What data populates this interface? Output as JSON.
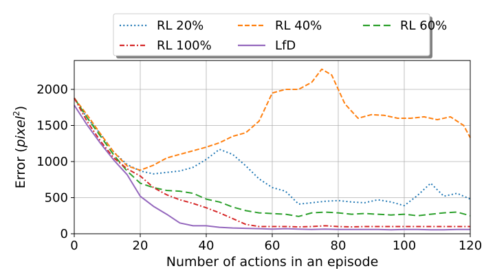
{
  "chart_data": {
    "type": "line",
    "title": "",
    "xlabel": "Number of actions in an episode",
    "ylabel_prefix": "Error (",
    "ylabel_unit": "pixel",
    "ylabel_exponent": "2",
    "ylabel_suffix": ")",
    "xlim": [
      0,
      120
    ],
    "ylim": [
      0,
      2400
    ],
    "xticks": [
      0,
      20,
      40,
      60,
      80,
      100,
      120
    ],
    "yticks": [
      0,
      500,
      1000,
      1500,
      2000
    ],
    "grid": true,
    "legend_position": "top-center",
    "legend_columns": 3,
    "series": [
      {
        "name": "RL 20%",
        "color": "#1f77b4",
        "dash": "dotted",
        "points": [
          [
            0,
            1880
          ],
          [
            4,
            1600
          ],
          [
            8,
            1380
          ],
          [
            12,
            1130
          ],
          [
            16,
            960
          ],
          [
            20,
            870
          ],
          [
            24,
            830
          ],
          [
            28,
            850
          ],
          [
            32,
            870
          ],
          [
            36,
            920
          ],
          [
            40,
            1030
          ],
          [
            44,
            1170
          ],
          [
            48,
            1100
          ],
          [
            52,
            940
          ],
          [
            56,
            760
          ],
          [
            60,
            640
          ],
          [
            64,
            590
          ],
          [
            68,
            410
          ],
          [
            72,
            430
          ],
          [
            76,
            450
          ],
          [
            80,
            460
          ],
          [
            84,
            440
          ],
          [
            88,
            430
          ],
          [
            92,
            470
          ],
          [
            96,
            440
          ],
          [
            100,
            390
          ],
          [
            104,
            530
          ],
          [
            108,
            700
          ],
          [
            112,
            520
          ],
          [
            116,
            560
          ],
          [
            120,
            480
          ]
        ]
      },
      {
        "name": "RL 40%",
        "color": "#ff7f0e",
        "dash": "dashed",
        "points": [
          [
            0,
            1880
          ],
          [
            4,
            1640
          ],
          [
            8,
            1380
          ],
          [
            12,
            1130
          ],
          [
            16,
            940
          ],
          [
            20,
            880
          ],
          [
            24,
            950
          ],
          [
            28,
            1050
          ],
          [
            32,
            1100
          ],
          [
            36,
            1150
          ],
          [
            40,
            1200
          ],
          [
            44,
            1260
          ],
          [
            48,
            1350
          ],
          [
            52,
            1400
          ],
          [
            56,
            1560
          ],
          [
            60,
            1950
          ],
          [
            64,
            2000
          ],
          [
            68,
            2000
          ],
          [
            72,
            2100
          ],
          [
            75,
            2280
          ],
          [
            78,
            2200
          ],
          [
            82,
            1800
          ],
          [
            86,
            1600
          ],
          [
            90,
            1650
          ],
          [
            94,
            1640
          ],
          [
            98,
            1600
          ],
          [
            102,
            1600
          ],
          [
            106,
            1620
          ],
          [
            110,
            1580
          ],
          [
            114,
            1620
          ],
          [
            118,
            1500
          ],
          [
            120,
            1330
          ]
        ]
      },
      {
        "name": "RL 60%",
        "color": "#2ca02c",
        "dash": "longdash",
        "points": [
          [
            0,
            1880
          ],
          [
            4,
            1600
          ],
          [
            8,
            1350
          ],
          [
            12,
            1090
          ],
          [
            16,
            870
          ],
          [
            20,
            700
          ],
          [
            24,
            640
          ],
          [
            28,
            600
          ],
          [
            32,
            590
          ],
          [
            36,
            560
          ],
          [
            40,
            480
          ],
          [
            44,
            440
          ],
          [
            48,
            370
          ],
          [
            52,
            320
          ],
          [
            56,
            290
          ],
          [
            60,
            280
          ],
          [
            64,
            270
          ],
          [
            68,
            240
          ],
          [
            72,
            290
          ],
          [
            76,
            300
          ],
          [
            80,
            290
          ],
          [
            84,
            270
          ],
          [
            88,
            280
          ],
          [
            92,
            270
          ],
          [
            96,
            260
          ],
          [
            100,
            270
          ],
          [
            104,
            250
          ],
          [
            108,
            270
          ],
          [
            112,
            290
          ],
          [
            116,
            300
          ],
          [
            120,
            250
          ]
        ]
      },
      {
        "name": "RL 100%",
        "color": "#d62728",
        "dash": "dashdot",
        "points": [
          [
            0,
            1880
          ],
          [
            4,
            1550
          ],
          [
            8,
            1280
          ],
          [
            12,
            1050
          ],
          [
            16,
            900
          ],
          [
            20,
            800
          ],
          [
            24,
            640
          ],
          [
            28,
            540
          ],
          [
            32,
            470
          ],
          [
            36,
            420
          ],
          [
            40,
            360
          ],
          [
            44,
            290
          ],
          [
            48,
            210
          ],
          [
            52,
            130
          ],
          [
            56,
            100
          ],
          [
            60,
            100
          ],
          [
            64,
            100
          ],
          [
            68,
            95
          ],
          [
            72,
            100
          ],
          [
            76,
            110
          ],
          [
            80,
            100
          ],
          [
            84,
            95
          ],
          [
            88,
            100
          ],
          [
            92,
            100
          ],
          [
            96,
            100
          ],
          [
            100,
            100
          ],
          [
            104,
            100
          ],
          [
            108,
            100
          ],
          [
            112,
            100
          ],
          [
            116,
            100
          ],
          [
            120,
            100
          ]
        ]
      },
      {
        "name": "LfD",
        "color": "#9467bd",
        "dash": "solid",
        "points": [
          [
            0,
            1780
          ],
          [
            4,
            1500
          ],
          [
            8,
            1250
          ],
          [
            12,
            1020
          ],
          [
            16,
            820
          ],
          [
            20,
            520
          ],
          [
            24,
            380
          ],
          [
            28,
            270
          ],
          [
            32,
            150
          ],
          [
            36,
            110
          ],
          [
            40,
            110
          ],
          [
            44,
            90
          ],
          [
            48,
            80
          ],
          [
            52,
            75
          ],
          [
            56,
            70
          ],
          [
            60,
            65
          ],
          [
            64,
            70
          ],
          [
            68,
            65
          ],
          [
            72,
            60
          ],
          [
            76,
            65
          ],
          [
            80,
            60
          ],
          [
            84,
            60
          ],
          [
            88,
            60
          ],
          [
            92,
            60
          ],
          [
            96,
            55
          ],
          [
            100,
            60
          ],
          [
            104,
            60
          ],
          [
            108,
            55
          ],
          [
            112,
            55
          ],
          [
            116,
            60
          ],
          [
            120,
            60
          ]
        ]
      }
    ]
  }
}
